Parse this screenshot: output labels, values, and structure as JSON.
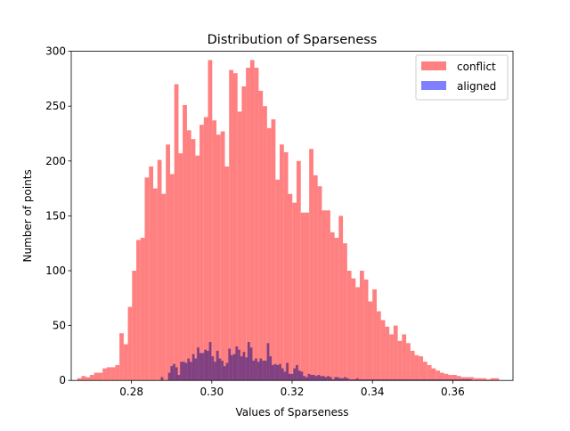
{
  "chart_data": {
    "type": "histogram",
    "title": "Distribution of Sparseness",
    "xlabel": "Values of Sparseness",
    "ylabel": "Number of points",
    "xlim": [
      0.265,
      0.375
    ],
    "ylim": [
      0,
      300
    ],
    "xticks": [
      0.28,
      0.3,
      0.32,
      0.34,
      0.36
    ],
    "xtick_labels": [
      "0.28",
      "0.30",
      "0.32",
      "0.34",
      "0.36"
    ],
    "yticks": [
      0,
      50,
      100,
      150,
      200,
      250,
      300
    ],
    "ytick_labels": [
      "0",
      "50",
      "100",
      "150",
      "200",
      "250",
      "300"
    ],
    "legend_position": "top-right",
    "grid": false,
    "series": [
      {
        "name": "conflict",
        "color": "#ff8080",
        "bin_start": 0.2665,
        "bin_width": 0.00105,
        "values": [
          2,
          4,
          3,
          5,
          7,
          7,
          11,
          12,
          12,
          14,
          43,
          33,
          67,
          100,
          128,
          130,
          185,
          195,
          175,
          201,
          170,
          215,
          188,
          270,
          207,
          251,
          228,
          220,
          205,
          233,
          240,
          292,
          237,
          224,
          227,
          195,
          283,
          280,
          245,
          268,
          285,
          292,
          285,
          264,
          250,
          230,
          238,
          183,
          215,
          208,
          170,
          162,
          200,
          153,
          153,
          211,
          187,
          177,
          155,
          155,
          135,
          130,
          150,
          125,
          100,
          93,
          85,
          100,
          92,
          72,
          83,
          63,
          55,
          49,
          42,
          50,
          36,
          42,
          34,
          27,
          23,
          22,
          17,
          14,
          11,
          9,
          7,
          6,
          5,
          5,
          4,
          3,
          3,
          3,
          2,
          2,
          2,
          1,
          2,
          2
        ]
      },
      {
        "name": "aligned",
        "color": "#8080ff",
        "bin_start": 0.2765,
        "bin_width": 0.0006,
        "values": [
          0,
          0,
          0,
          0,
          0,
          0,
          0,
          0,
          0,
          0,
          0,
          0,
          0,
          0,
          0,
          0,
          0,
          0,
          3,
          0,
          0,
          7,
          13,
          15,
          12,
          5,
          17,
          17,
          16,
          20,
          17,
          24,
          20,
          30,
          25,
          25,
          28,
          27,
          35,
          22,
          17,
          27,
          20,
          18,
          13,
          16,
          29,
          23,
          24,
          31,
          28,
          22,
          26,
          21,
          35,
          30,
          18,
          20,
          17,
          20,
          18,
          18,
          34,
          22,
          14,
          15,
          14,
          15,
          11,
          8,
          16,
          6,
          6,
          11,
          14,
          9,
          8,
          4,
          3,
          6,
          5,
          5,
          4,
          5,
          4,
          4,
          3,
          4,
          3,
          1,
          3,
          3,
          2,
          2,
          3,
          2,
          1,
          1,
          1,
          2,
          1,
          1,
          1,
          1,
          1,
          1,
          1,
          1,
          1,
          1,
          1,
          1,
          1,
          1,
          1,
          1,
          1,
          1,
          1,
          1,
          1,
          1,
          1,
          1,
          1,
          1,
          1,
          1,
          1,
          1,
          1,
          1,
          1,
          1,
          1,
          1,
          1,
          1,
          1,
          1,
          1,
          1,
          1,
          1,
          1,
          1,
          1
        ]
      }
    ]
  }
}
